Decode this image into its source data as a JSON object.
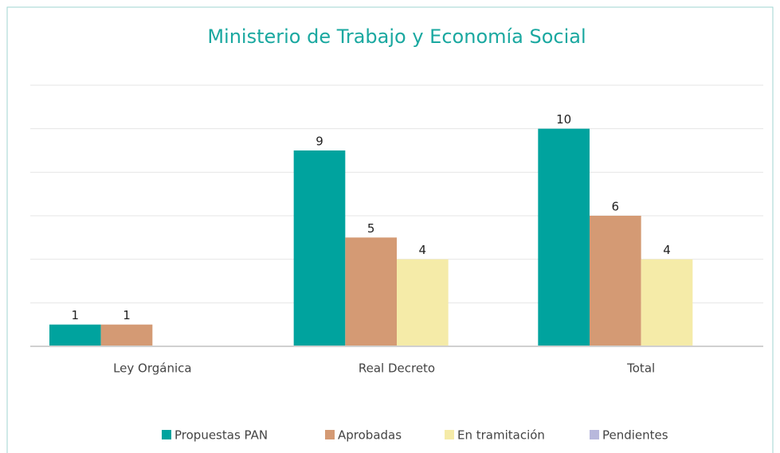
{
  "chart_data": {
    "type": "bar",
    "title": "Ministerio de Trabajo y Economía Social",
    "categories": [
      "Ley Orgánica",
      "Real Decreto",
      "Total"
    ],
    "series": [
      {
        "name": "Propuestas PAN",
        "color": "#00a39e",
        "values": [
          1,
          9,
          10
        ]
      },
      {
        "name": "Aprobadas",
        "color": "#d49a74",
        "values": [
          1,
          5,
          6
        ]
      },
      {
        "name": "En tramitación",
        "color": "#f5eba8",
        "values": [
          null,
          4,
          4
        ]
      },
      {
        "name": "Pendientes",
        "color": "#b8b8dc",
        "values": [
          null,
          null,
          null
        ]
      }
    ],
    "ylim": [
      0,
      12
    ],
    "yticks": [
      0,
      2,
      4,
      6,
      8,
      10,
      12
    ],
    "grid": true,
    "legend": "bottom"
  }
}
